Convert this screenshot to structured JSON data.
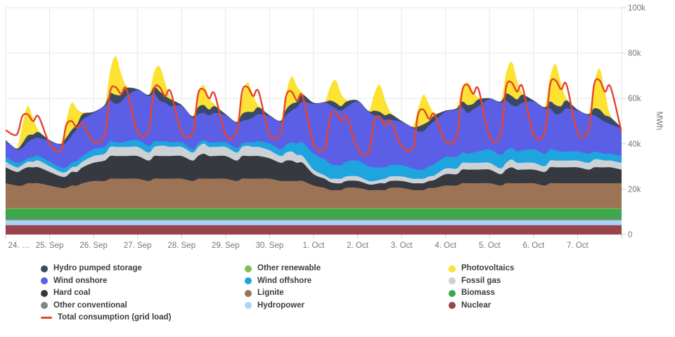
{
  "chart": {
    "x_axis": {
      "tick_labels": [
        "24. …",
        "25. Sep",
        "26. Sep",
        "27. Sep",
        "28. Sep",
        "29. Sep",
        "30. Sep",
        "1. Oct",
        "2. Oct",
        "3. Oct",
        "4. Oct",
        "5. Oct",
        "6. Oct",
        "7. Oct"
      ]
    },
    "y_axis": {
      "unit": "MWh",
      "ticks": [
        {
          "value_kMWh": 0,
          "label": "0"
        },
        {
          "value_kMWh": 20,
          "label": "20k"
        },
        {
          "value_kMWh": 40,
          "label": "40k"
        },
        {
          "value_kMWh": 60,
          "label": "60k"
        },
        {
          "value_kMWh": 80,
          "label": "80k"
        },
        {
          "value_kMWh": 100,
          "label": "100k"
        }
      ]
    },
    "colors": {
      "grid": "#e6e7ea",
      "tick": "#c9ccd1",
      "axis_text": "#75767c",
      "legend_text": "#3c3c40"
    }
  },
  "chart_data": {
    "type": "area",
    "stacked": true,
    "unit": "MWh",
    "values_unit_note": "series values in thousand MWh, sampled at sample_hours for each day from 24 Sep to 7 Oct plus one endpoint",
    "days": 14,
    "sample_hours": [
      0,
      6,
      9,
      12,
      15,
      18
    ],
    "ylim_kMWh": [
      0,
      100
    ],
    "legend_position": "bottom",
    "grid": true,
    "series": [
      {
        "key": "nuclear",
        "label": "Nuclear",
        "color": "#9a434c",
        "constant": 4.1
      },
      {
        "key": "hydropower",
        "label": "Hydropower",
        "color": "#a9d7f3",
        "constant": 2.2
      },
      {
        "key": "other-conventional",
        "label": "Other conventional",
        "color": "#83878b",
        "constant": 0.6
      },
      {
        "key": "biomass",
        "label": "Biomass",
        "color": "#3ca84c",
        "constant": 4.4
      },
      {
        "key": "other-renewable",
        "label": "Other renewable",
        "color": "#7fbe52",
        "constant": 0.3
      },
      {
        "key": "lignite",
        "label": "Lignite",
        "color": "#9c7455",
        "values": [
          11,
          10,
          10,
          11,
          11,
          11,
          10,
          9,
          9,
          10,
          10,
          11,
          12,
          12,
          13,
          13,
          13,
          13,
          13,
          12,
          13,
          13,
          13,
          13,
          13,
          12,
          13,
          13,
          13,
          13,
          13,
          12,
          13,
          13,
          13,
          13,
          13,
          12,
          12,
          12,
          12,
          12,
          10,
          9,
          8,
          8,
          8,
          9,
          9,
          8,
          8,
          8,
          8,
          9,
          9,
          8,
          8,
          8,
          9,
          9,
          10,
          10,
          11,
          11,
          11,
          11,
          11,
          10,
          11,
          11,
          11,
          11,
          11,
          10,
          11,
          11,
          11,
          11,
          11,
          11,
          11,
          11,
          11,
          11,
          11
        ]
      },
      {
        "key": "hard-coal",
        "label": "Hard coal",
        "color": "#363940",
        "values": [
          7,
          6,
          7,
          7,
          7,
          7,
          6,
          5,
          5,
          6,
          6,
          7,
          8,
          9,
          10,
          10,
          10,
          10,
          10,
          9,
          10,
          10,
          10,
          10,
          10,
          9,
          10,
          11,
          10,
          10,
          10,
          9,
          10,
          10,
          10,
          10,
          9,
          8,
          9,
          9,
          8,
          8,
          5,
          4,
          3.5,
          3,
          3,
          3,
          3,
          2.5,
          2.5,
          3,
          3,
          3,
          3,
          3,
          3,
          3,
          3,
          3.5,
          5,
          5,
          6,
          6,
          6,
          6,
          6,
          5,
          6,
          7,
          6,
          6,
          6,
          6,
          7,
          7,
          7,
          7,
          7,
          6,
          7,
          7,
          7,
          7,
          6
        ]
      },
      {
        "key": "fossil-gas",
        "label": "Fossil gas",
        "color": "#ccd1d5",
        "values": [
          2.5,
          2,
          2,
          2.5,
          2.5,
          3,
          2.5,
          2,
          2,
          2,
          2.5,
          2.5,
          3,
          3,
          4,
          4,
          4,
          4,
          4,
          3.5,
          4,
          4.5,
          4.5,
          4,
          4,
          3.5,
          4,
          4.5,
          4,
          4,
          4,
          3.5,
          4,
          4.5,
          4,
          4,
          3.5,
          3,
          3.5,
          4,
          3.5,
          3,
          2,
          1.5,
          1.5,
          2,
          2,
          2,
          2,
          1.5,
          1.5,
          1.5,
          2,
          2,
          2,
          2,
          2,
          2,
          2,
          2,
          2.5,
          2.5,
          3,
          3,
          3,
          3,
          3,
          2.5,
          3,
          3.5,
          3,
          3,
          3,
          2.5,
          3,
          3,
          3,
          3,
          3,
          3,
          3.5,
          3.5,
          3,
          3,
          3
        ]
      },
      {
        "key": "wind-offshore",
        "label": "Wind offshore",
        "color": "#1ea5e0",
        "values": [
          2,
          2,
          1.5,
          1.5,
          2,
          2,
          2,
          2,
          2,
          2,
          2.5,
          2.5,
          3,
          3,
          2.5,
          2,
          2,
          2.5,
          3,
          3,
          2.5,
          2,
          2,
          2,
          2,
          1.5,
          1.5,
          1.5,
          2,
          2,
          2,
          2,
          1.5,
          1.5,
          2,
          2.5,
          3,
          3,
          3.5,
          4,
          5,
          6,
          7,
          7,
          6.5,
          6,
          6,
          6.5,
          7,
          6.5,
          6,
          5.5,
          5,
          5,
          5,
          4.5,
          4,
          4,
          4.5,
          5,
          5,
          5,
          4.5,
          4,
          4.5,
          5,
          6,
          6,
          5.5,
          5,
          5,
          5.5,
          6,
          5.5,
          5,
          4.5,
          4,
          4,
          4,
          4,
          3.5,
          3,
          3,
          3,
          3
        ]
      },
      {
        "key": "wind-onshore",
        "label": "Wind onshore",
        "color": "#5a5fe6",
        "values": [
          7,
          6,
          6,
          7,
          8,
          8,
          9,
          10,
          11,
          12,
          14,
          16,
          16,
          18,
          18,
          17,
          18,
          20,
          22,
          22,
          21,
          18,
          17,
          16,
          16,
          14,
          13,
          12,
          12,
          13,
          12,
          11,
          10,
          10,
          11,
          12,
          12,
          12,
          13,
          14,
          16,
          18,
          22,
          25,
          26,
          25,
          24,
          24,
          26,
          24,
          23,
          22,
          21,
          20,
          19,
          18,
          17,
          17,
          18,
          19,
          20,
          21,
          20,
          18,
          19,
          20,
          22,
          23,
          22,
          19,
          20,
          21,
          21,
          20,
          18,
          16,
          17,
          19,
          18,
          17,
          16,
          15,
          14,
          13,
          12
        ]
      },
      {
        "key": "hydro-pumped-storage",
        "label": "Hydro pumped storage",
        "color": "#3a4a66",
        "values": [
          0.5,
          0.3,
          2,
          3,
          2,
          2.5,
          0.5,
          0.3,
          2,
          2.5,
          2,
          2.5,
          0.5,
          0.5,
          3,
          4,
          3,
          3.5,
          0.5,
          0.5,
          3,
          4,
          3,
          3,
          0.5,
          0.5,
          3,
          3.5,
          2.5,
          3,
          0.5,
          0.5,
          3,
          3.5,
          2.5,
          3,
          0.5,
          0.5,
          2.5,
          3,
          2.5,
          3,
          0.5,
          0.3,
          2,
          2.5,
          2,
          2.5,
          0.5,
          0.3,
          2,
          2.5,
          2,
          2.5,
          0.5,
          0.3,
          2,
          3,
          2,
          2.5,
          0.5,
          0.5,
          2.5,
          3.5,
          2.5,
          3,
          0.5,
          0.5,
          3,
          4,
          3,
          3.5,
          0.5,
          0.5,
          3,
          4,
          3,
          3.5,
          0.5,
          0.5,
          3,
          4,
          3,
          3,
          0.5
        ]
      },
      {
        "key": "photovoltaics",
        "label": "Photovoltaics",
        "color": "#fbe233",
        "values": [
          0,
          0.2,
          7.8,
          13,
          7.2,
          0.8,
          0,
          0.2,
          7.2,
          12,
          6.6,
          0.8,
          0,
          0.2,
          10,
          17,
          9.4,
          0.8,
          0,
          0.2,
          6.6,
          11,
          6,
          0.8,
          0,
          0.2,
          5.4,
          9,
          5,
          0.8,
          0,
          0.2,
          7.8,
          13,
          7.2,
          0.8,
          0,
          0.2,
          7.2,
          12,
          6.6,
          0.8,
          0,
          0.2,
          6,
          10,
          5.5,
          0.8,
          0,
          0.2,
          7.2,
          12,
          6.6,
          0.8,
          0,
          0.2,
          7.8,
          13,
          7.2,
          0.8,
          0,
          0.2,
          6,
          10,
          5.5,
          0.8,
          0,
          0.2,
          9,
          15,
          8.3,
          0.8,
          0,
          0.2,
          10.8,
          18,
          10,
          0.8,
          0,
          0.2,
          10.8,
          18,
          10,
          0.8,
          0
        ]
      }
    ],
    "consumption": {
      "key": "total-consumption",
      "label": "Total consumption (grid load)",
      "color": "#e8432c",
      "values": [
        46,
        44,
        52,
        53,
        50,
        52,
        40,
        37,
        48,
        50,
        47,
        49,
        41,
        44,
        63,
        65,
        62,
        64,
        45,
        46,
        64,
        65,
        61,
        63,
        45,
        45,
        62,
        64,
        60,
        62,
        44,
        45,
        63,
        65,
        61,
        63,
        44,
        45,
        61,
        63,
        59,
        61,
        40,
        38,
        52,
        54,
        50,
        52,
        38,
        36,
        50,
        52,
        48,
        50,
        39,
        38,
        53,
        55,
        51,
        53,
        41,
        43,
        63,
        66,
        62,
        64,
        43,
        44,
        65,
        67,
        63,
        65,
        44,
        45,
        66,
        68,
        64,
        66,
        45,
        46,
        66,
        68,
        63,
        65,
        45
      ]
    }
  },
  "legend": {
    "columns": [
      [
        {
          "key": "hydro-pumped-storage",
          "label": "Hydro pumped storage",
          "color": "#3a4a66",
          "swatch": "circle"
        },
        {
          "key": "wind-onshore",
          "label": "Wind onshore",
          "color": "#5a5fe6",
          "swatch": "circle"
        },
        {
          "key": "hard-coal",
          "label": "Hard coal",
          "color": "#363940",
          "swatch": "circle"
        },
        {
          "key": "other-conventional",
          "label": "Other conventional",
          "color": "#83878b",
          "swatch": "circle"
        },
        {
          "key": "total-consumption",
          "label": "Total consumption (grid load)",
          "color": "#e8432c",
          "swatch": "line"
        }
      ],
      [
        {
          "key": "other-renewable",
          "label": "Other renewable",
          "color": "#7fbe52",
          "swatch": "circle"
        },
        {
          "key": "wind-offshore",
          "label": "Wind offshore",
          "color": "#1ea5e0",
          "swatch": "circle"
        },
        {
          "key": "lignite",
          "label": "Lignite",
          "color": "#9c7455",
          "swatch": "circle"
        },
        {
          "key": "hydropower",
          "label": "Hydropower",
          "color": "#a9d7f3",
          "swatch": "circle"
        }
      ],
      [
        {
          "key": "photovoltaics",
          "label": "Photovoltaics",
          "color": "#fbe233",
          "swatch": "circle"
        },
        {
          "key": "fossil-gas",
          "label": "Fossil gas",
          "color": "#ccd1d5",
          "swatch": "circle"
        },
        {
          "key": "biomass",
          "label": "Biomass",
          "color": "#3ca84c",
          "swatch": "circle"
        },
        {
          "key": "nuclear",
          "label": "Nuclear",
          "color": "#9a434c",
          "swatch": "circle"
        }
      ]
    ]
  }
}
